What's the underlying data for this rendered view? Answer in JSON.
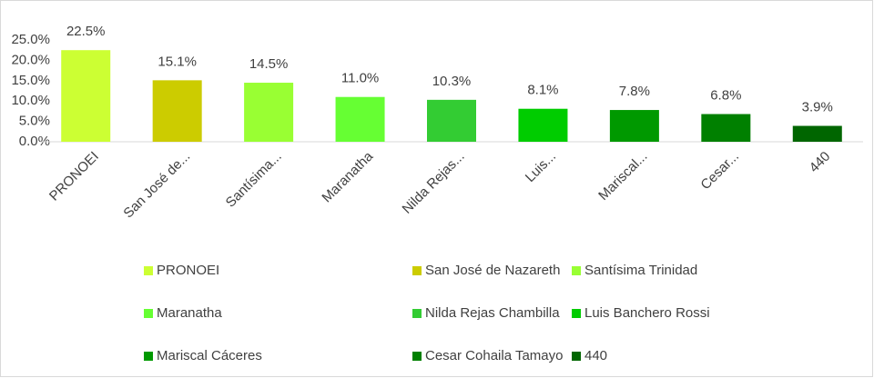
{
  "chart_data": {
    "type": "bar",
    "categories": [
      "PRONOEI",
      "San José de...",
      "Santísima...",
      "Maranatha",
      "Nilda Rejas...",
      "Luis...",
      "Mariscal...",
      "Cesar...",
      "440"
    ],
    "names": [
      "PRONOEI",
      "San José de Nazareth",
      "Santísima Trinidad",
      "Maranatha",
      "Nilda Rejas Chambilla",
      "Luis Banchero Rossi",
      "Mariscal Cáceres",
      "Cesar Cohaila Tamayo",
      "440"
    ],
    "colors": [
      "#ccff33",
      "#cccc00",
      "#99ff33",
      "#66ff33",
      "#33cc33",
      "#00cc00",
      "#009900",
      "#008000",
      "#006600"
    ],
    "values": [
      22.5,
      15.1,
      14.5,
      11.0,
      10.3,
      8.1,
      7.8,
      6.8,
      3.9
    ],
    "value_labels": [
      "22.5%",
      "15.1%",
      "14.5%",
      "11.0%",
      "10.3%",
      "8.1%",
      "7.8%",
      "6.8%",
      "3.9%"
    ],
    "ylim": [
      0,
      25
    ],
    "yticks": [
      {
        "value": 0,
        "label": "0.0%"
      },
      {
        "value": 5,
        "label": "5.0%"
      },
      {
        "value": 10,
        "label": "10.0%"
      },
      {
        "value": 15,
        "label": "15.0%"
      },
      {
        "value": 20,
        "label": "20.0%"
      },
      {
        "value": 25,
        "label": "25.0%"
      }
    ]
  }
}
